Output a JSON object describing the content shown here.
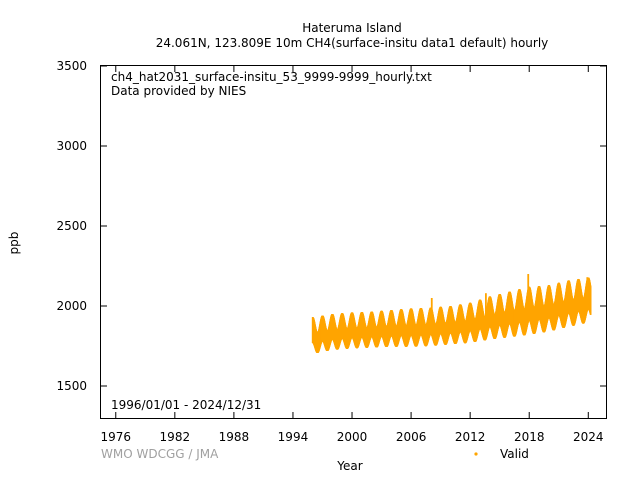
{
  "title": {
    "line1": "Hateruma Island",
    "line2": "24.061N, 123.809E 10m    CH4(surface-insitu data1 default) hourly"
  },
  "annotations": {
    "filename": "ch4_hat2031_surface-insitu_53_9999-9999_hourly.txt",
    "provider": "Data provided by NIES",
    "date_range": "1996/01/01 - 2024/12/31"
  },
  "credit": "WMO WDCGG / JMA",
  "colors": {
    "series": "#ffa500",
    "axis": "#000000",
    "credit": "#a0a0a0"
  },
  "chart_data": {
    "type": "scatter",
    "xlabel": "Year",
    "ylabel": "ppb",
    "xlim": [
      1974.5,
      2025.8
    ],
    "ylim": [
      1300,
      3500
    ],
    "x_ticks": [
      "1976",
      "1982",
      "1988",
      "1994",
      "2000",
      "2006",
      "2012",
      "2018",
      "2024"
    ],
    "y_ticks": [
      "1500",
      "2000",
      "2500",
      "3000",
      "3500"
    ],
    "legend": {
      "position": "bottom-right",
      "entries": [
        {
          "label": "Valid",
          "marker": "dot",
          "color": "#ffa500"
        }
      ]
    },
    "series": [
      {
        "name": "Valid",
        "x_start": 1996.0,
        "x_end": 2024.25,
        "envelope": [
          {
            "x": 1996.0,
            "low": 1700,
            "high": 1930
          },
          {
            "x": 1998.0,
            "low": 1725,
            "high": 1950
          },
          {
            "x": 2000.0,
            "low": 1735,
            "high": 1960
          },
          {
            "x": 2002.0,
            "low": 1740,
            "high": 1965
          },
          {
            "x": 2004.0,
            "low": 1745,
            "high": 1975
          },
          {
            "x": 2006.0,
            "low": 1745,
            "high": 1985
          },
          {
            "x": 2008.0,
            "low": 1750,
            "high": 1990
          },
          {
            "x": 2010.0,
            "low": 1760,
            "high": 2000
          },
          {
            "x": 2012.0,
            "low": 1770,
            "high": 2020
          },
          {
            "x": 2014.0,
            "low": 1790,
            "high": 2060
          },
          {
            "x": 2016.0,
            "low": 1805,
            "high": 2090
          },
          {
            "x": 2018.0,
            "low": 1820,
            "high": 2120
          },
          {
            "x": 2020.0,
            "low": 1840,
            "high": 2130
          },
          {
            "x": 2022.0,
            "low": 1870,
            "high": 2160
          },
          {
            "x": 2024.25,
            "low": 1900,
            "high": 2180
          }
        ],
        "spikes": [
          {
            "x": 2008.1,
            "y": 2050
          },
          {
            "x": 2013.6,
            "y": 2080
          },
          {
            "x": 2017.9,
            "y": 2200
          },
          {
            "x": 2018.9,
            "y": 2095
          },
          {
            "x": 2023.9,
            "y": 2180
          }
        ]
      }
    ]
  }
}
